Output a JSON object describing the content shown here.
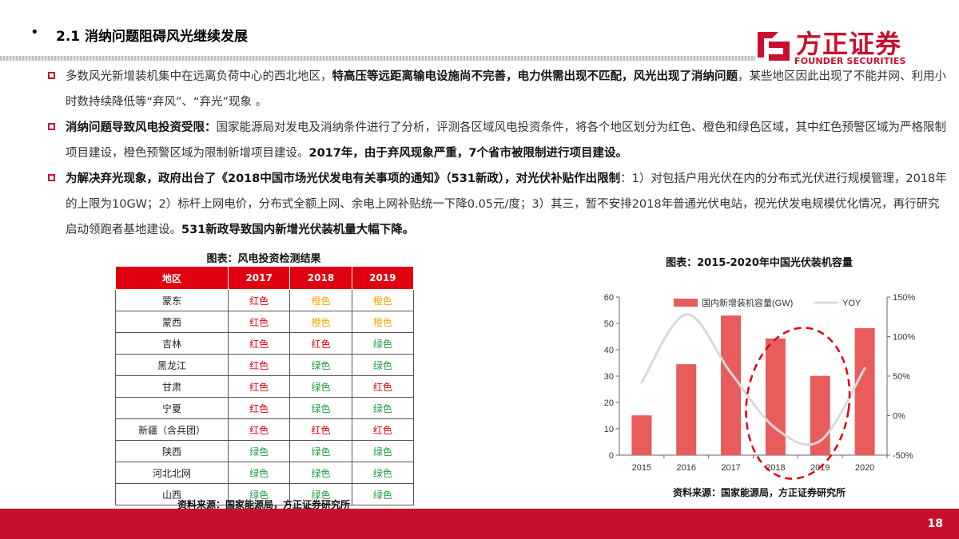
{
  "header": {
    "bullet": "•",
    "title": "2.1 消纳问题阻碍风光继续发展"
  },
  "logo": {
    "cn": "方正证券",
    "en": "FOUNDER SECURITIES"
  },
  "paragraphs": [
    {
      "segments": [
        {
          "text": "多数风光新增装机集中在远离负荷中心的西北地区，",
          "bold": false
        },
        {
          "text": "特高压等远距离输电设施尚不完善，电力供需出现不匹配，风光出现了消纳问题",
          "bold": true
        },
        {
          "text": "，某些地区因此出现了不能并网、利用小时数持续降低等“弃风”、“弃光”现象 。",
          "bold": false
        }
      ]
    },
    {
      "segments": [
        {
          "text": "消纳问题导致风电投资受限：",
          "bold": true
        },
        {
          "text": "国家能源局对发电及消纳条件进行了分析，评测各区域风电投资条件，将各个地区划分为红色、橙色和绿色区域，其中红色预警区域为严格限制项目建设，橙色预警区域为限制新增项目建设。",
          "bold": false
        },
        {
          "text": "2017年，由于弃风现象严重，7个省市被限制进行项目建设。",
          "bold": true
        }
      ]
    },
    {
      "segments": [
        {
          "text": "为解决弃光现象，政府出台了《2018中国市场光伏发电有关事项的通知》（531新政），对光伏补贴作出限制",
          "bold": true
        },
        {
          "text": "：1）对包括户用光伏在内的分布式光伏进行规模管理，2018年的上限为10GW；2）标杆上网电价，分布式全额上网、余电上网补贴统一下降0.05元/度；3）其三，暂不安排2018年普通光伏电站，视光伏发电规模优化情况，再行研究启动领跑者基地建设。",
          "bold": false
        },
        {
          "text": "531新政导致国内新增光伏装机量大幅下降。",
          "bold": true
        }
      ]
    }
  ],
  "wind_table": {
    "title": "图表：风电投资检测结果",
    "headers": [
      "地区",
      "2017",
      "2018",
      "2019"
    ],
    "rows": [
      [
        "蒙东",
        "红色",
        "橙色",
        "橙色"
      ],
      [
        "蒙西",
        "红色",
        "橙色",
        "橙色"
      ],
      [
        "吉林",
        "红色",
        "红色",
        "绿色"
      ],
      [
        "黑龙江",
        "红色",
        "绿色",
        "绿色"
      ],
      [
        "甘肃",
        "红色",
        "绿色",
        "红色"
      ],
      [
        "宁夏",
        "红色",
        "绿色",
        "绿色"
      ],
      [
        "新疆（含兵团）",
        "红色",
        "红色",
        "红色"
      ],
      [
        "陕西",
        "绿色",
        "绿色",
        "绿色"
      ],
      [
        "河北北网",
        "绿色",
        "绿色",
        "绿色"
      ],
      [
        "山西",
        "绿色",
        "绿色",
        "绿色"
      ]
    ],
    "colors": {
      "红色": "#e00010",
      "橙色": "#f2a900",
      "绿色": "#1ea04a"
    },
    "source": "资料来源：国家能源局，方正证券研究所"
  },
  "chart_data": {
    "type": "bar",
    "title": "图表：2015-2020年中国光伏装机容量",
    "categories": [
      "2015",
      "2016",
      "2017",
      "2018",
      "2019",
      "2020"
    ],
    "series": [
      {
        "name": "国内新增装机容量(GW)",
        "type": "bar",
        "axis": "left",
        "color": "#e85c5c",
        "values": [
          15.1,
          34.5,
          53.0,
          44.3,
          30.1,
          48.2
        ]
      },
      {
        "name": "YOY",
        "type": "line",
        "axis": "right",
        "color": "#d9d9d9",
        "values": [
          0.42,
          1.28,
          0.54,
          -0.16,
          -0.32,
          0.6
        ]
      }
    ],
    "ylim": [
      0,
      60
    ],
    "yticks": [
      0,
      10,
      20,
      30,
      40,
      50,
      60
    ],
    "y2lim": [
      -0.5,
      1.5
    ],
    "y2ticks": [
      "-50%",
      "0%",
      "50%",
      "100%",
      "150%"
    ],
    "legend": "top",
    "annotation": "red dashed ellipse around 2018-2019",
    "source": "资料来源：国家能源局，方正证券研究所"
  },
  "footer": {
    "page": "18"
  }
}
